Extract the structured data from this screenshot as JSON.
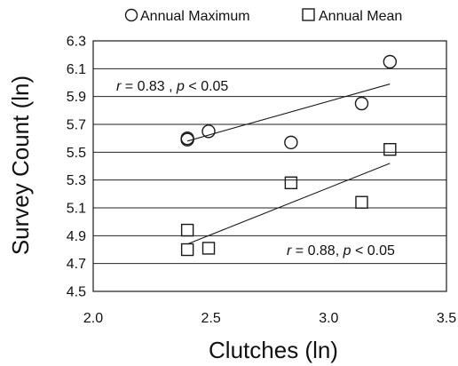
{
  "chart_data": {
    "type": "scatter",
    "title": "",
    "xlabel": "Clutches (ln)",
    "ylabel": "Survey Count (ln)",
    "xlim": [
      2.0,
      3.5
    ],
    "ylim": [
      4.5,
      6.3
    ],
    "x_ticks": [
      "2.0",
      "2.5",
      "3.0",
      "3.5"
    ],
    "y_ticks": [
      "4.5",
      "4.7",
      "4.9",
      "5.1",
      "5.3",
      "5.5",
      "5.7",
      "5.9",
      "6.1",
      "6.3"
    ],
    "grid": "horizontal",
    "legend_position": "top",
    "series": [
      {
        "name": "Annual Maximum",
        "marker": "circle",
        "points": [
          {
            "x": 2.4,
            "y": 5.59
          },
          {
            "x": 2.4,
            "y": 5.6
          },
          {
            "x": 2.49,
            "y": 5.65
          },
          {
            "x": 2.84,
            "y": 5.57
          },
          {
            "x": 3.14,
            "y": 5.85
          },
          {
            "x": 3.26,
            "y": 6.15
          }
        ],
        "trendline": {
          "x": [
            2.4,
            3.26
          ],
          "y": [
            5.58,
            5.99
          ]
        },
        "annotation": {
          "parts": [
            {
              "text": "r",
              "italic": true
            },
            {
              "text": " = 0.83 , ",
              "italic": false
            },
            {
              "text": "p",
              "italic": true
            },
            {
              "text": " < 0.05",
              "italic": false
            }
          ]
        }
      },
      {
        "name": "Annual Mean",
        "marker": "square",
        "points": [
          {
            "x": 2.4,
            "y": 4.94
          },
          {
            "x": 2.4,
            "y": 4.8
          },
          {
            "x": 2.49,
            "y": 4.81
          },
          {
            "x": 2.84,
            "y": 5.28
          },
          {
            "x": 3.14,
            "y": 5.14
          },
          {
            "x": 3.26,
            "y": 5.52
          }
        ],
        "trendline": {
          "x": [
            2.4,
            3.26
          ],
          "y": [
            4.84,
            5.42
          ]
        },
        "annotation": {
          "parts": [
            {
              "text": "r",
              "italic": true
            },
            {
              "text": " = 0.88, ",
              "italic": false
            },
            {
              "text": "p",
              "italic": true
            },
            {
              "text": " < 0.05",
              "italic": false
            }
          ]
        }
      }
    ],
    "colors": {
      "marker": "#1a1a1a",
      "line": "#1a1a1a",
      "grid": "#222222"
    }
  }
}
